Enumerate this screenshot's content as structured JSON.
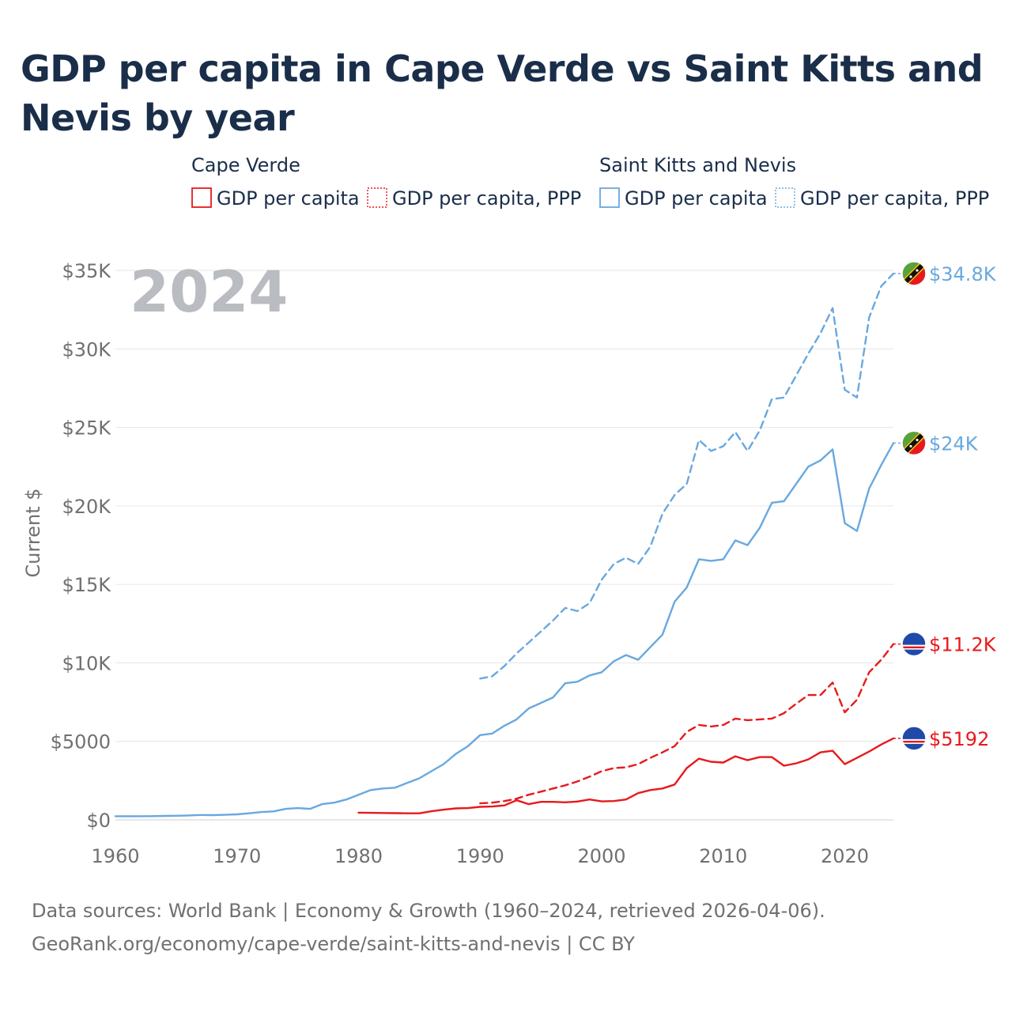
{
  "chart_data": {
    "type": "line",
    "title": "GDP per capita in Cape Verde vs Saint Kitts and Nevis by year",
    "ylabel": "Current $",
    "xlabel": "",
    "year_label": "2024",
    "xlim": [
      1960,
      2024
    ],
    "ylim": [
      0,
      35000
    ],
    "x_ticks": [
      1960,
      1970,
      1980,
      1990,
      2000,
      2010,
      2020
    ],
    "y_ticks": [
      {
        "value": 0,
        "label": "$0"
      },
      {
        "value": 5000,
        "label": "$5000"
      },
      {
        "value": 10000,
        "label": "$10K"
      },
      {
        "value": 15000,
        "label": "$15K"
      },
      {
        "value": 20000,
        "label": "$20K"
      },
      {
        "value": 25000,
        "label": "$25K"
      },
      {
        "value": 30000,
        "label": "$30K"
      },
      {
        "value": 35000,
        "label": "$35K"
      }
    ],
    "legend": {
      "placement": "top",
      "groups": [
        {
          "country": "Cape Verde",
          "color": "#e8191c",
          "items": [
            {
              "label": "GDP per capita",
              "style": "solid"
            },
            {
              "label": "GDP per capita, PPP",
              "style": "dotted"
            }
          ]
        },
        {
          "country": "Saint Kitts and Nevis",
          "color": "#69a8df",
          "items": [
            {
              "label": "GDP per capita",
              "style": "solid"
            },
            {
              "label": "GDP per capita, PPP",
              "style": "dotted"
            }
          ]
        }
      ]
    },
    "series": [
      {
        "name": "Saint Kitts and Nevis GDP per capita",
        "country": "Saint Kitts and Nevis",
        "color": "#69a8df",
        "dash": "solid",
        "end_label": "$24K",
        "flag": "saint-kitts-and-nevis-flag-icon",
        "x": [
          1960,
          1961,
          1962,
          1963,
          1964,
          1965,
          1966,
          1967,
          1968,
          1969,
          1970,
          1971,
          1972,
          1973,
          1974,
          1975,
          1976,
          1977,
          1978,
          1979,
          1980,
          1981,
          1982,
          1983,
          1984,
          1985,
          1986,
          1987,
          1988,
          1989,
          1990,
          1991,
          1992,
          1993,
          1994,
          1995,
          1996,
          1997,
          1998,
          1999,
          2000,
          2001,
          2002,
          2003,
          2004,
          2005,
          2006,
          2007,
          2008,
          2009,
          2010,
          2011,
          2012,
          2013,
          2014,
          2015,
          2016,
          2017,
          2018,
          2019,
          2020,
          2021,
          2022,
          2023,
          2024
        ],
        "values": [
          230,
          230,
          230,
          235,
          250,
          260,
          280,
          310,
          300,
          320,
          350,
          420,
          500,
          540,
          700,
          750,
          700,
          1000,
          1100,
          1300,
          1600,
          1900,
          2000,
          2050,
          2350,
          2650,
          3100,
          3550,
          4200,
          4700,
          5400,
          5500,
          6000,
          6400,
          7100,
          7450,
          7800,
          8700,
          8800,
          9200,
          9400,
          10100,
          10500,
          10200,
          11000,
          11800,
          13900,
          14800,
          16600,
          16500,
          16600,
          17800,
          17500,
          18600,
          20200,
          20300,
          21400,
          22500,
          22900,
          23600,
          18900,
          18400,
          21100,
          22600,
          24000
        ]
      },
      {
        "name": "Saint Kitts and Nevis GDP per capita, PPP",
        "country": "Saint Kitts and Nevis",
        "color": "#69a8df",
        "dash": "dashed",
        "end_label": "$34.8K",
        "flag": "saint-kitts-and-nevis-flag-icon",
        "x": [
          1990,
          1991,
          1992,
          1993,
          1994,
          1995,
          1996,
          1997,
          1998,
          1999,
          2000,
          2001,
          2002,
          2003,
          2004,
          2005,
          2006,
          2007,
          2008,
          2009,
          2010,
          2011,
          2012,
          2013,
          2014,
          2015,
          2016,
          2017,
          2018,
          2019,
          2020,
          2021,
          2022,
          2023,
          2024
        ],
        "values": [
          9000,
          9150,
          9800,
          10600,
          11300,
          12000,
          12700,
          13500,
          13300,
          13800,
          15300,
          16300,
          16700,
          16300,
          17400,
          19500,
          20700,
          21400,
          24200,
          23500,
          23800,
          24700,
          23500,
          24800,
          26800,
          26900,
          28300,
          29700,
          31000,
          32600,
          27400,
          26900,
          32000,
          34000,
          34800
        ]
      },
      {
        "name": "Cape Verde GDP per capita",
        "country": "Cape Verde",
        "color": "#e8191c",
        "dash": "solid",
        "end_label": "$5192",
        "flag": "cape-verde-flag-icon",
        "x": [
          1980,
          1981,
          1982,
          1983,
          1984,
          1985,
          1986,
          1987,
          1988,
          1989,
          1990,
          1991,
          1992,
          1993,
          1994,
          1995,
          1996,
          1997,
          1998,
          1999,
          2000,
          2001,
          2002,
          2003,
          2004,
          2005,
          2006,
          2007,
          2008,
          2009,
          2010,
          2011,
          2012,
          2013,
          2014,
          2015,
          2016,
          2017,
          2018,
          2019,
          2020,
          2021,
          2022,
          2023,
          2024
        ],
        "values": [
          460,
          450,
          440,
          430,
          420,
          420,
          550,
          650,
          730,
          750,
          830,
          850,
          920,
          1250,
          1000,
          1150,
          1150,
          1120,
          1170,
          1300,
          1180,
          1200,
          1300,
          1700,
          1900,
          2000,
          2250,
          3300,
          3900,
          3700,
          3650,
          4050,
          3800,
          4000,
          4000,
          3450,
          3600,
          3850,
          4300,
          4400,
          3550,
          3950,
          4350,
          4800,
          5192
        ]
      },
      {
        "name": "Cape Verde GDP per capita, PPP",
        "country": "Cape Verde",
        "color": "#e8191c",
        "dash": "dashed",
        "end_label": "$11.2K",
        "flag": "cape-verde-flag-icon",
        "x": [
          1990,
          1991,
          1992,
          1993,
          1994,
          1995,
          1996,
          1997,
          1998,
          1999,
          2000,
          2001,
          2002,
          2003,
          2004,
          2005,
          2006,
          2007,
          2008,
          2009,
          2010,
          2011,
          2012,
          2013,
          2014,
          2015,
          2016,
          2017,
          2018,
          2019,
          2020,
          2021,
          2022,
          2023,
          2024
        ],
        "values": [
          1050,
          1100,
          1200,
          1350,
          1600,
          1800,
          2000,
          2200,
          2450,
          2750,
          3100,
          3300,
          3350,
          3550,
          3950,
          4300,
          4700,
          5600,
          6050,
          5950,
          6050,
          6450,
          6350,
          6400,
          6450,
          6800,
          7400,
          7950,
          7950,
          8750,
          6850,
          7650,
          9400,
          10200,
          11200
        ]
      }
    ]
  },
  "footer": {
    "line1": "Data sources: World Bank | Economy & Growth (1960–2024, retrieved 2026-04-06).",
    "line2": "GeoRank.org/economy/cape-verde/saint-kitts-and-nevis | CC BY"
  }
}
